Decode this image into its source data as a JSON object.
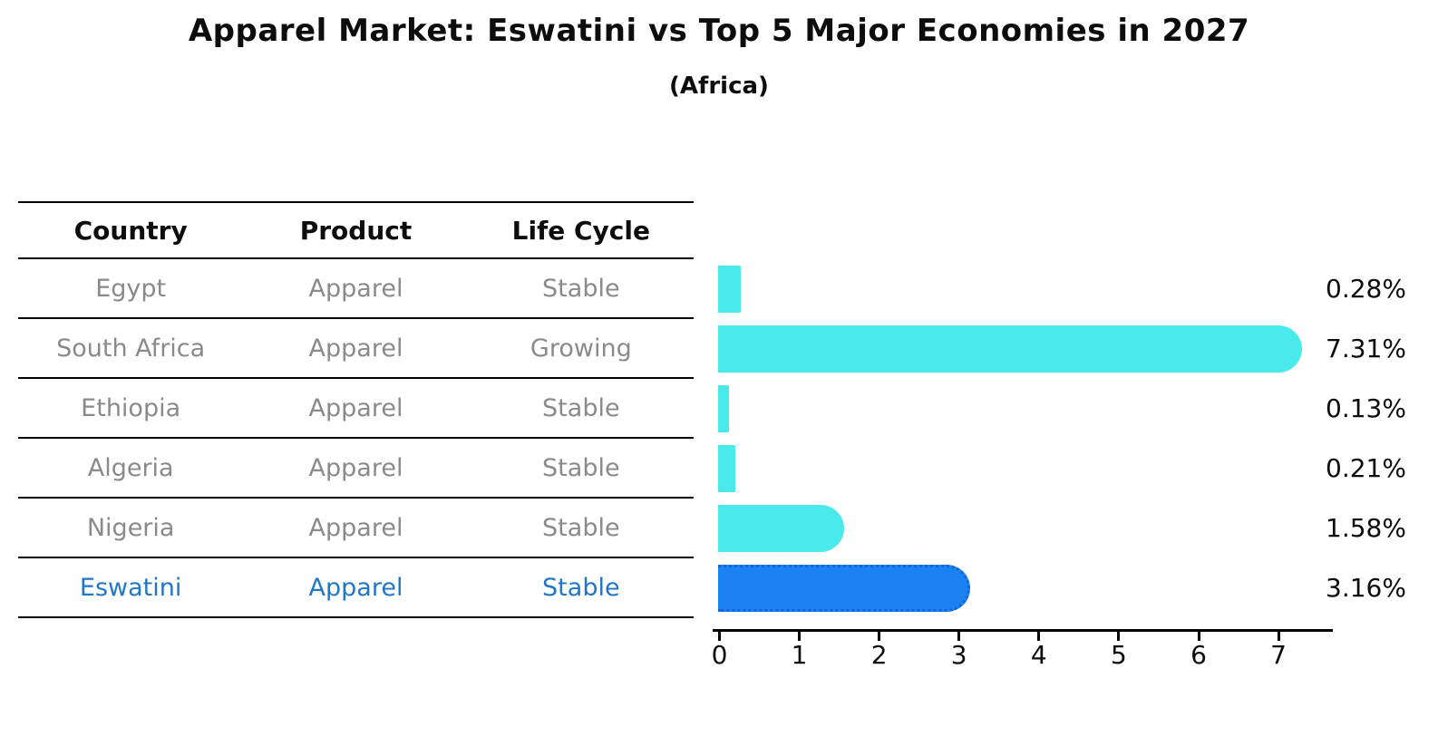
{
  "title": "Apparel Market: Eswatini vs Top 5 Major Economies in 2027",
  "subtitle": "(Africa)",
  "table": {
    "headers": [
      "Country",
      "Product",
      "Life Cycle"
    ],
    "rows": [
      {
        "country": "Egypt",
        "product": "Apparel",
        "life_cycle": "Stable",
        "highlight": false
      },
      {
        "country": "South Africa",
        "product": "Apparel",
        "life_cycle": "Growing",
        "highlight": false
      },
      {
        "country": "Ethiopia",
        "product": "Apparel",
        "life_cycle": "Stable",
        "highlight": false
      },
      {
        "country": "Algeria",
        "product": "Apparel",
        "life_cycle": "Stable",
        "highlight": false
      },
      {
        "country": "Nigeria",
        "product": "Apparel",
        "life_cycle": "Stable",
        "highlight": false
      },
      {
        "country": "Eswatini",
        "product": "Apparel",
        "life_cycle": "Stable",
        "highlight": true
      }
    ]
  },
  "chart_data": {
    "type": "bar",
    "orientation": "horizontal",
    "title": "Apparel Market: Eswatini vs Top 5 Major Economies in 2027",
    "subtitle": "(Africa)",
    "categories": [
      "Egypt",
      "South Africa",
      "Ethiopia",
      "Algeria",
      "Nigeria",
      "Eswatini"
    ],
    "values": [
      0.28,
      7.31,
      0.13,
      0.21,
      1.58,
      3.16
    ],
    "value_labels": [
      "0.28%",
      "7.31%",
      "0.13%",
      "0.21%",
      "1.58%",
      "3.16%"
    ],
    "x_ticks": [
      "0",
      "1",
      "2",
      "3",
      "4",
      "5",
      "6",
      "7"
    ],
    "xlim": [
      0,
      7.72
    ],
    "grid": false,
    "legend": "none",
    "highlight_index": 5,
    "highlight_category": "Eswatini"
  },
  "colors": {
    "bar_color": "#4ae9ec",
    "highlight_color": "#1b82f2",
    "highlight_border_color": "#1266d9",
    "highlight_text_color": "#2176c7",
    "row_text_color": "#8a8a8a",
    "axis_color": "#000000",
    "text_color": "#0d0d0d"
  }
}
